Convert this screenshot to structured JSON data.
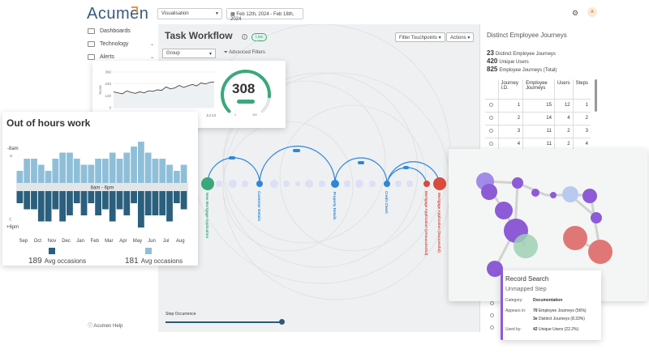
{
  "app": {
    "logo": "Acumen",
    "view_select": "Visualisation",
    "date_range": "Feb 12th, 2024 - Feb 18th, 2024",
    "avatar_initial": "A"
  },
  "sidebar": {
    "items": [
      {
        "label": "Dashboards"
      },
      {
        "label": "Technology"
      },
      {
        "label": "Alerts"
      }
    ],
    "help": "Acumen Help"
  },
  "workflow": {
    "title": "Task Workflow",
    "live_badge": "Live",
    "filter_touchpoints": "Filter Touchpoints",
    "actions": "Actions",
    "group_select": "Group",
    "advanced_filters": "Advanced Filters",
    "step_occurrence": "Step Occurrence",
    "nodes": [
      {
        "label": "New Mortgage Application",
        "color": "#3aa87b"
      },
      {
        "label": "Customer Details",
        "color": "#2f86d6"
      },
      {
        "label": "Property Details",
        "color": "#2f86d6"
      },
      {
        "label": "Credit Check",
        "color": "#2f86d6"
      },
      {
        "label": "Mortgage Application (Unsuccessful)",
        "color": "#d94a3f"
      },
      {
        "label": "Mortgage Application (Successful)",
        "color": "#d94a3f"
      }
    ]
  },
  "journeys": {
    "title": "Distinct Employee Journeys",
    "stats": [
      {
        "value": "23",
        "label": "Distinct Employee Journeys"
      },
      {
        "value": "420",
        "label": "Unique Users"
      },
      {
        "value": "825",
        "label": "Employee Journeys (Total)"
      }
    ],
    "columns": [
      "Journey I.D.",
      "Employee Journeys",
      "Users",
      "Steps"
    ],
    "rows": [
      [
        "1",
        "15",
        "12",
        "1"
      ],
      [
        "2",
        "14",
        "4",
        "2"
      ],
      [
        "3",
        "11",
        "2",
        "3"
      ],
      [
        "4",
        "11",
        "2",
        "4"
      ]
    ]
  },
  "out_of_hours": {
    "title": "Out of hours work",
    "top_label": "-8am",
    "bottom_label": "+6pm",
    "band_label": "8am - 6pm",
    "legend": [
      {
        "value": "189",
        "label": "Avg occasions",
        "color": "#2a5f7d"
      },
      {
        "value": "181",
        "label": "Avg occasions",
        "color": "#8fbfd8"
      }
    ]
  },
  "chart_data": [
    {
      "type": "bar",
      "title": "Out of hours work",
      "categories": [
        "Sep",
        "",
        "Oct",
        "",
        "Nov",
        "",
        "Dec",
        "",
        "Jan",
        "",
        "Feb",
        "",
        "Mar",
        "",
        "Apr",
        "",
        "May",
        "",
        "Jun",
        "",
        "Jul",
        "",
        "Aug",
        ""
      ],
      "series": [
        {
          "values": [
            2,
            4,
            4,
            3,
            2,
            4,
            5,
            5,
            4,
            3,
            3,
            4,
            4,
            5,
            4,
            5,
            6,
            7,
            5,
            4,
            4,
            3,
            2,
            3
          ]
        },
        {
          "values": [
            -2,
            -3,
            -3,
            -5,
            -5,
            -3,
            -5,
            -4,
            -2,
            -4,
            -2,
            -4,
            -3,
            -5,
            -3,
            -4,
            -2,
            -6,
            -4,
            -4,
            -4,
            -5,
            -2,
            -3
          ]
        }
      ],
      "month_labels": [
        "Sep",
        "Oct",
        "Nov",
        "Dec",
        "Jan",
        "Feb",
        "Mar",
        "Apr",
        "May",
        "Jun",
        "Jul",
        "Aug"
      ]
    },
    {
      "type": "line",
      "ylabel": "Score",
      "x_labels": [
        "Apr 23",
        "May 23",
        "Jun 23",
        "Jul 23"
      ],
      "y_ticks": [
        "360",
        "240",
        "120",
        "0"
      ],
      "ylim": [
        0,
        360
      ],
      "values": [
        160,
        150,
        140,
        170,
        155,
        145,
        160,
        150,
        170,
        165,
        180,
        175,
        210,
        190,
        200,
        225,
        205,
        220,
        235,
        220,
        250,
        240,
        255,
        260
      ]
    }
  ],
  "score": {
    "value": "308",
    "gauge_fraction": 0.85,
    "gauge_color": "#3aa87b",
    "min": "0",
    "max": "360"
  },
  "tooltip": {
    "title": "Record Search",
    "subtitle": "Unmapped Step",
    "rows": [
      {
        "label": "Category:",
        "value": "Documentation",
        "bold": true
      },
      {
        "label": "Appears in:",
        "value": "70",
        "rest": "Employee Journeys (56%)"
      },
      {
        "label": "",
        "value": "3e",
        "rest": "Distinct Journeys (8.33%)"
      },
      {
        "label": "Used by:",
        "value": "42",
        "rest": "Unique Users (22.2%)"
      }
    ]
  }
}
